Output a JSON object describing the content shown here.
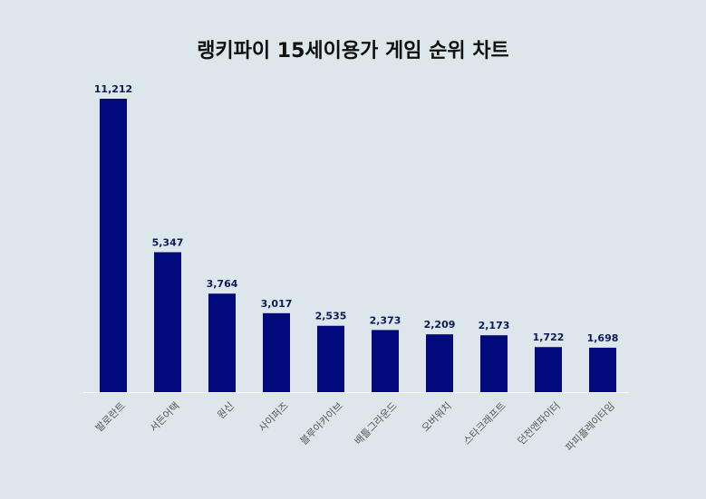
{
  "chart_data": {
    "type": "bar",
    "title": "랭키파이 15세이용가 게임 순위 차트",
    "categories": [
      "발로란트",
      "서든어택",
      "원신",
      "사이퍼즈",
      "블루아카이브",
      "배틀그라운드",
      "오버워치",
      "스타크래프트",
      "던전앤파이터",
      "파피플레이타임"
    ],
    "values": [
      11212,
      5347,
      3764,
      3017,
      2535,
      2373,
      2209,
      2173,
      1722,
      1698
    ],
    "value_labels": [
      "11,212",
      "5,347",
      "3,764",
      "3,017",
      "2,535",
      "2,373",
      "2,209",
      "2,173",
      "1,722",
      "1,698"
    ],
    "xlabel": "",
    "ylabel": "",
    "ylim": [
      0,
      11212
    ],
    "grid": false,
    "legend": "none",
    "bar_color": "#000a7a",
    "background_color": "#dde6ea"
  }
}
